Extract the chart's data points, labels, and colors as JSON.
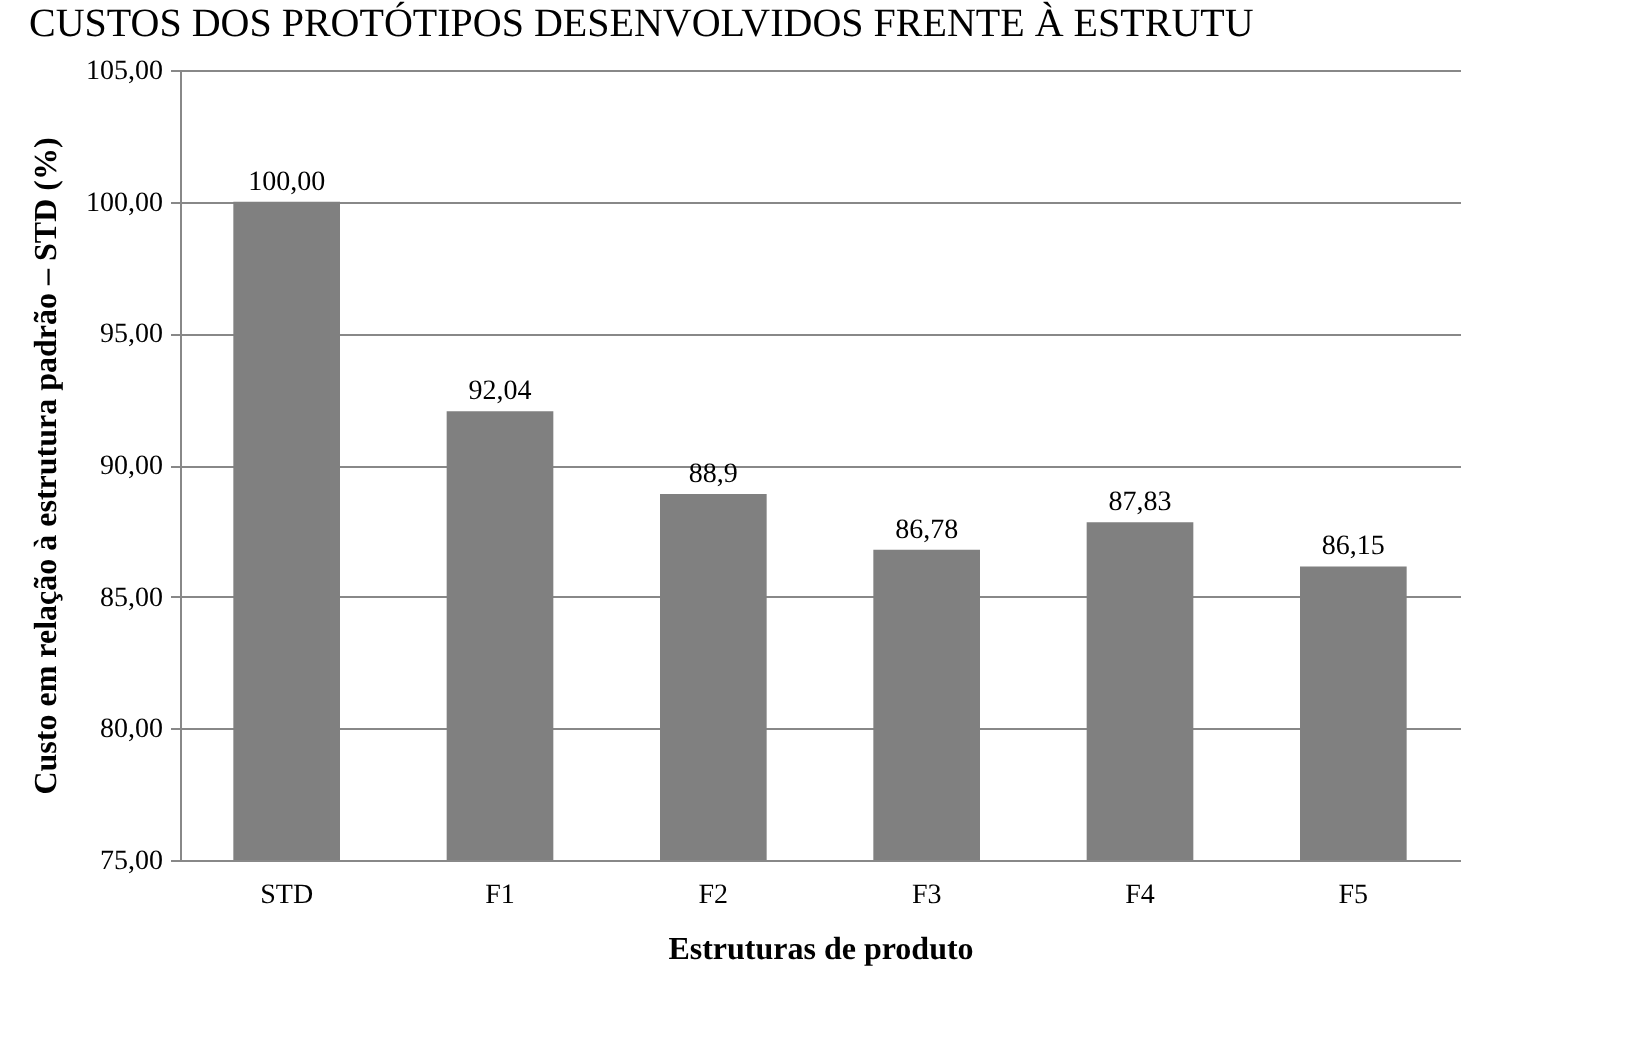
{
  "chart_data": {
    "type": "bar",
    "title": "CUSTOS DOS PROTÓTIPOS DESENVOLVIDOS FRENTE À ESTRUTU",
    "categories": [
      "STD",
      "F1",
      "F2",
      "F3",
      "F4",
      "F5"
    ],
    "values": [
      100,
      92.04,
      88.9,
      86.78,
      87.83,
      86.15
    ],
    "value_labels": [
      "100,00",
      "92,04",
      "88,9",
      "86,78",
      "87,83",
      "86,15"
    ],
    "color": "#808080",
    "xlabel": "Estruturas de produto",
    "ylabel": "Custo em relação à estrutura padrão – STD (%)",
    "ylim": [
      75,
      105
    ],
    "yticks": [
      {
        "value": 75,
        "label": "75,00"
      },
      {
        "value": 80,
        "label": "80,00"
      },
      {
        "value": 85,
        "label": "85,00"
      },
      {
        "value": 90,
        "label": "90,00"
      },
      {
        "value": 95,
        "label": "95,00"
      },
      {
        "value": 100,
        "label": "100,00"
      },
      {
        "value": 105,
        "label": "105,00"
      }
    ],
    "grid": "y"
  }
}
